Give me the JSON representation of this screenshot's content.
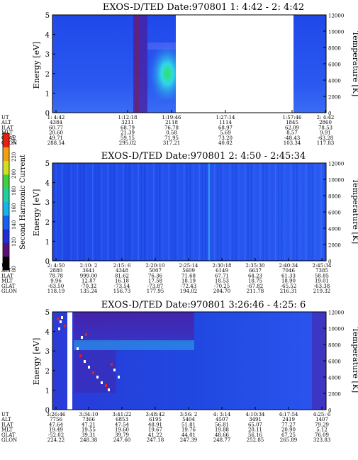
{
  "chart_data": [
    {
      "type": "heatmap",
      "title": "EXOS-D/TED   Date:970801  1: 4:42 - 2: 4:42",
      "ylabel": "Energy [eV]",
      "y2label": "Temperature [K]",
      "ylim": [
        0,
        5
      ],
      "y2lim": [
        0,
        12000
      ],
      "yticks": [
        "0",
        "1",
        "2",
        "3",
        "4",
        "5"
      ],
      "y2ticks": [
        "0",
        "2000",
        "4000",
        "6000",
        "8000",
        "10000",
        "12000"
      ],
      "data_gap": true,
      "orbit_labels": [
        "UT",
        "ALT",
        "ILAT",
        "MLT",
        "GLAT",
        "GLON"
      ],
      "orbit_columns": [
        {
          "UT": "1: 4:42",
          "ALT": "4384",
          "ILAT": "60.77",
          "MLT": "20.60",
          "GLAT": "49.71",
          "GLON": "288.54"
        },
        {
          "UT": "1:12:18",
          "ALT": "3211",
          "ILAT": "68.79",
          "MLT": "21.39",
          "GLAT": "59.15",
          "GLON": "295.02"
        },
        {
          "UT": "1:19:46",
          "ALT": "2118",
          "ILAT": "76.78",
          "MLT": "0.58",
          "GLAT": "71.95",
          "GLON": "317.21"
        },
        {
          "UT": "1:27:14",
          "ALT": "1114",
          "ILAT": "68.97",
          "MLT": "5.69",
          "GLAT": "73.20",
          "GLON": "40.02"
        },
        {
          "UT": "1:57:46",
          "ALT": "1845",
          "ILAT": "62.09",
          "MLT": "8.57",
          "GLAT": "-48.43",
          "GLON": "103.34"
        },
        {
          "UT": "2: 4:42",
          "ALT": "2860",
          "ILAT": "78.53",
          "MLT": "9.91",
          "GLAT": "-63.28",
          "GLON": "117.83"
        }
      ]
    },
    {
      "type": "heatmap",
      "title": "EXOS-D/TED   Date:970801  2: 4:50 - 2:45:34",
      "ylabel": "Energy [eV]",
      "y2label": "Temperature [K]",
      "ylim": [
        0,
        5
      ],
      "y2lim": [
        0,
        12000
      ],
      "yticks": [
        "0",
        "1",
        "2",
        "3",
        "4",
        "5"
      ],
      "y2ticks": [
        "0",
        "2000",
        "4000",
        "6000",
        "8000",
        "10000",
        "12000"
      ],
      "orbit_labels": [
        "UT",
        "ALT",
        "ILAT",
        "MLT",
        "GLAT",
        "GLON"
      ],
      "orbit_columns": [
        {
          "UT": "2: 4:50",
          "ALT": "2880",
          "ILAT": "78.78",
          "MLT": "9.96",
          "GLAT": "-63.50",
          "GLON": "118.19"
        },
        {
          "UT": "2:10: 2",
          "ALT": "3641",
          "ILAT": "999.00",
          "MLT": "12.87",
          "GLAT": "-70.32",
          "GLON": "135.24"
        },
        {
          "UT": "2:15: 6",
          "ALT": "4348",
          "ILAT": "81.62",
          "MLT": "16.18",
          "GLAT": "-73.54",
          "GLON": "156.73"
        },
        {
          "UT": "2:20:10",
          "ALT": "5007",
          "ILAT": "76.36",
          "MLT": "17.58",
          "GLAT": "-73.87",
          "GLON": "177.95"
        },
        {
          "UT": "2:25:14",
          "ALT": "5609",
          "ILAT": "71.68",
          "MLT": "18.19",
          "GLAT": "-72.43",
          "GLON": "194.02"
        },
        {
          "UT": "2:30:18",
          "ALT": "6149",
          "ILAT": "67.71",
          "MLT": "18.53",
          "GLAT": "-70.25",
          "GLON": "204.70"
        },
        {
          "UT": "2:35:30",
          "ALT": "6637",
          "ILAT": "64.23",
          "MLT": "18.75",
          "GLAT": "-67.82",
          "GLON": "211.78"
        },
        {
          "UT": "2:40:34",
          "ALT": "7046",
          "ILAT": "61.33",
          "MLT": "18.90",
          "GLAT": "-65.52",
          "GLON": "216.31"
        },
        {
          "UT": "2:45:34",
          "ALT": "7385",
          "ILAT": "58.85",
          "MLT": "19.01",
          "GLAT": "-63.38",
          "GLON": "219.32"
        }
      ]
    },
    {
      "type": "heatmap",
      "title": "EXOS-D/TED   Date:970801  3:26:46 - 4:25: 6",
      "ylabel": "Energy [eV]",
      "y2label": "Temperature [K]",
      "ylim": [
        0,
        5
      ],
      "y2lim": [
        0,
        12000
      ],
      "yticks": [
        "0",
        "1",
        "2",
        "3",
        "4",
        "5"
      ],
      "y2ticks": [
        "0",
        "2000",
        "4000",
        "6000",
        "8000",
        "10000",
        "12000"
      ],
      "orbit_labels": [
        "UT",
        "ALT",
        "ILAT",
        "MLT",
        "GLAT",
        "GLON"
      ],
      "orbit_columns": [
        {
          "UT": "3:26:46",
          "ALT": "7756",
          "ILAT": "47.64",
          "MLT": "19.49",
          "GLAT": "-52.02",
          "GLON": "224.22"
        },
        {
          "UT": "3:34:10",
          "ALT": "7366",
          "ILAT": "47.21",
          "MLT": "19.55",
          "GLAT": "39.31",
          "GLON": "248.38"
        },
        {
          "UT": "3:41:22",
          "ALT": "6853",
          "ILAT": "47.54",
          "MLT": "19.60",
          "GLAT": "39.79",
          "GLON": "247.60"
        },
        {
          "UT": "3:48:42",
          "ALT": "6195",
          "ILAT": "48.91",
          "MLT": "19.67",
          "GLAT": "41.22",
          "GLON": "247.18"
        },
        {
          "UT": "3:56: 2",
          "ALT": "5404",
          "ILAT": "51.81",
          "MLT": "19.76",
          "GLAT": "44.01",
          "GLON": "247.39"
        },
        {
          "UT": "4: 3:14",
          "ALT": "4507",
          "ILAT": "56.81",
          "MLT": "19.88",
          "GLAT": "48.66",
          "GLON": "248.77"
        },
        {
          "UT": "4:10:34",
          "ALT": "3491",
          "ILAT": "65.07",
          "MLT": "20.11",
          "GLAT": "56.16",
          "GLON": "252.85"
        },
        {
          "UT": "4:17:54",
          "ALT": "2419",
          "ILAT": "77.27",
          "MLT": "20.90",
          "GLAT": "67.25",
          "GLON": "265.89"
        },
        {
          "UT": "4:25: 6",
          "ALT": "1407",
          "ILAT": "79.29",
          "MLT": "5.12",
          "GLAT": "76.09",
          "GLON": "323.83"
        }
      ]
    }
  ],
  "colorbar": {
    "label": "Second Harmonic Current",
    "ticks": [
      "80",
      "120",
      "140",
      "160",
      "180",
      "200",
      "220",
      "240"
    ],
    "colors": [
      "#000000",
      "#5a0f78",
      "#1f2fd8",
      "#1860f0",
      "#18b4e8",
      "#20d0a0",
      "#40d040",
      "#d0e020",
      "#f0a010",
      "#e82010"
    ]
  },
  "colors": {
    "background_low": "#1f3ee0",
    "background_mid": "#2a55f0",
    "band_purple": "#4a1ea0",
    "highlight_cyan": "#30d8e8",
    "highlight_green": "#30e060",
    "dark_red": "#8a1a40"
  }
}
